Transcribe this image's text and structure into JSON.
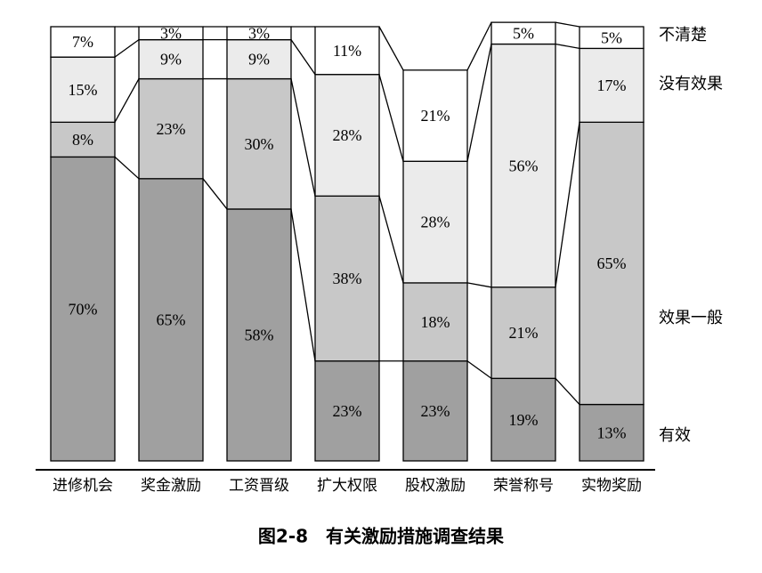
{
  "chart_data": {
    "type": "stacked-bar",
    "caption": "图2-8　有关激励措施调查结果",
    "categories": [
      "进修机会",
      "奖金激励",
      "工资晋级",
      "扩大权限",
      "股权激励",
      "荣誉称号",
      "实物奖励"
    ],
    "ylim": [
      0,
      100
    ],
    "series": [
      {
        "name": "有效",
        "color": "#a0a0a0",
        "values": [
          70,
          65,
          58,
          23,
          23,
          19,
          13
        ],
        "value_labels": [
          "70%",
          "65%",
          "58%",
          "23%",
          "23%",
          "19%",
          "13%"
        ]
      },
      {
        "name": "效果一般",
        "color": "#c8c8c8",
        "values": [
          8,
          23,
          30,
          38,
          18,
          21,
          65
        ],
        "value_labels": [
          "8%",
          "23%",
          "30%",
          "38%",
          "18%",
          "21%",
          "65%"
        ]
      },
      {
        "name": "没有效果",
        "color": "#ebebeb",
        "values": [
          15,
          9,
          9,
          28,
          28,
          56,
          17
        ],
        "value_labels": [
          "15%",
          "9%",
          "9%",
          "28%",
          "28%",
          "56%",
          "17%"
        ]
      },
      {
        "name": "不清楚",
        "color": "#ffffff",
        "values": [
          7,
          3,
          3,
          11,
          21,
          5,
          5
        ],
        "value_labels": [
          "7%",
          "3%",
          "3%",
          "11%",
          "21%",
          "5%",
          "5%"
        ]
      }
    ]
  }
}
